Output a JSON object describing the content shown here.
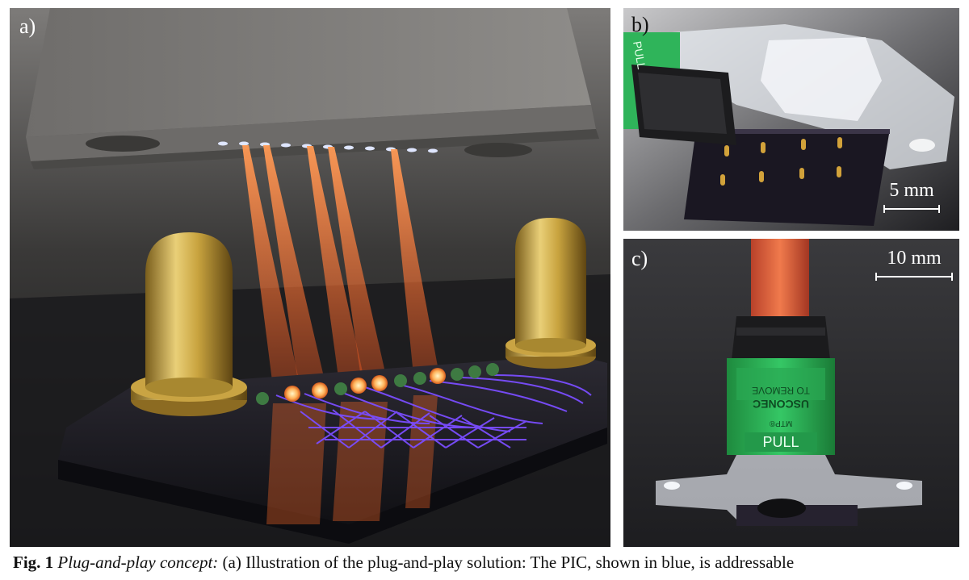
{
  "figure": {
    "panel_a": {
      "label": "a)"
    },
    "panel_b": {
      "label": "b)",
      "scale_text": "5 mm"
    },
    "panel_c": {
      "label": "c)",
      "scale_text": "10 mm"
    },
    "connector_text": {
      "pull": "PULL",
      "mtp": "MTP®",
      "brand": "USCONEC",
      "remove": "TO REMOVE"
    }
  },
  "caption": {
    "number": "Fig. 1",
    "concept": "Plug-and-play concept:",
    "text": "(a) Illustration of the plug-and-play solution: The PIC, shown in blue, is addressable"
  },
  "colors": {
    "beam": "#ff7a2a",
    "waveguide": "#7a4dff",
    "gold": "#d6b24a",
    "connector_green": "#2fbf5a",
    "cable_orange": "#e8603a"
  }
}
